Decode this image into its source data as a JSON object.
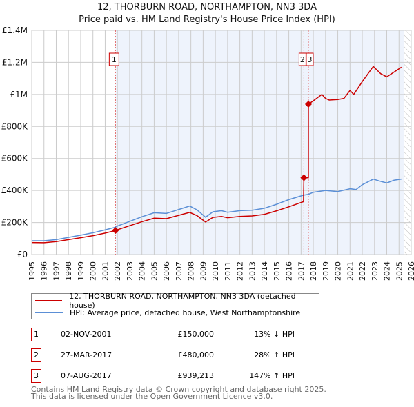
{
  "chart_data": {
    "type": "line",
    "title": "12, THORBURN ROAD, NORTHAMPTON, NN3 3DA",
    "subtitle": "Price paid vs. HM Land Registry's House Price Index (HPI)",
    "xlim": [
      1995,
      2026
    ],
    "ylim": [
      0,
      1400000
    ],
    "x_ticks": [
      1995,
      1996,
      1997,
      1998,
      1999,
      2000,
      2001,
      2002,
      2003,
      2004,
      2005,
      2006,
      2007,
      2008,
      2009,
      2010,
      2011,
      2012,
      2013,
      2014,
      2015,
      2016,
      2017,
      2018,
      2019,
      2020,
      2021,
      2022,
      2023,
      2024,
      2025,
      2026
    ],
    "y_ticks": [
      {
        "v": 0,
        "label": "£0"
      },
      {
        "v": 200000,
        "label": "£200K"
      },
      {
        "v": 400000,
        "label": "£400K"
      },
      {
        "v": 600000,
        "label": "£600K"
      },
      {
        "v": 800000,
        "label": "£800K"
      },
      {
        "v": 1000000,
        "label": "£1M"
      },
      {
        "v": 1200000,
        "label": "£1.2M"
      },
      {
        "v": 1400000,
        "label": "£1.4M"
      }
    ],
    "grid": true,
    "shaded_from": 2001.84,
    "forecast_from": 2025.4,
    "series": [
      {
        "name": "12, THORBURN ROAD, NORTHAMPTON, NN3 3DA (detached house)",
        "color": "#cc0000",
        "x": [
          1995,
          1996,
          1997,
          1998,
          1999,
          2000,
          2001,
          2001.84,
          2002,
          2003,
          2004,
          2005,
          2006,
          2007,
          2007.9,
          2008.5,
          2009.2,
          2009.8,
          2010.5,
          2011,
          2012,
          2013,
          2014,
          2015,
          2016,
          2017.2,
          2017.23,
          2017.6,
          2017.6,
          2018,
          2018.7,
          2019,
          2019.3,
          2020,
          2020.5,
          2021,
          2021.3,
          2022,
          2022.9,
          2023.5,
          2024,
          2024.6,
          2025.2
        ],
        "y": [
          75000,
          74000,
          81000,
          93000,
          105000,
          118000,
          134000,
          150000,
          155000,
          180000,
          205000,
          227000,
          224000,
          245000,
          263000,
          243000,
          203000,
          232000,
          238000,
          230000,
          238000,
          241000,
          251000,
          273000,
          298000,
          330000,
          480000,
          480000,
          939213,
          960000,
          1000000,
          975000,
          965000,
          968000,
          975000,
          1025000,
          1000000,
          1080000,
          1175000,
          1130000,
          1110000,
          1140000,
          1170000
        ]
      },
      {
        "name": "HPI: Average price, detached house, West Northamptonshire",
        "color": "#5b8fd6",
        "x": [
          1995,
          1996,
          1997,
          1998,
          1999,
          2000,
          2001,
          2001.84,
          2002,
          2003,
          2004,
          2005,
          2006,
          2007,
          2007.9,
          2008.5,
          2009.2,
          2009.8,
          2010.5,
          2011,
          2012,
          2013,
          2014,
          2015,
          2016,
          2017.2,
          2017.6,
          2018,
          2019,
          2020,
          2021,
          2021.5,
          2022,
          2022.9,
          2023.5,
          2024,
          2024.6,
          2025.2
        ],
        "y": [
          86000,
          86000,
          93000,
          107000,
          121000,
          136000,
          154000,
          171000,
          178000,
          207000,
          236000,
          261000,
          257000,
          281000,
          303000,
          279000,
          233000,
          267000,
          274000,
          264000,
          274000,
          277000,
          289000,
          314000,
          343000,
          371000,
          376000,
          389000,
          400000,
          393000,
          411000,
          406000,
          436000,
          471000,
          457000,
          447000,
          464000,
          471000
        ]
      }
    ],
    "sales": [
      {
        "label": "1",
        "x": 2001.84,
        "y": 150000,
        "date": "02-NOV-2001",
        "price": "£150,000",
        "hpi": "13% ↓ HPI"
      },
      {
        "label": "2",
        "x": 2017.23,
        "y": 480000,
        "date": "27-MAR-2017",
        "price": "£480,000",
        "hpi": "28% ↑ HPI"
      },
      {
        "label": "3",
        "x": 2017.6,
        "y": 939213,
        "date": "07-AUG-2017",
        "price": "£939,213",
        "hpi": "147% ↑ HPI"
      }
    ]
  },
  "footer": [
    "Contains HM Land Registry data © Crown copyright and database right 2025.",
    "This data is licensed under the Open Government Licence v3.0."
  ]
}
